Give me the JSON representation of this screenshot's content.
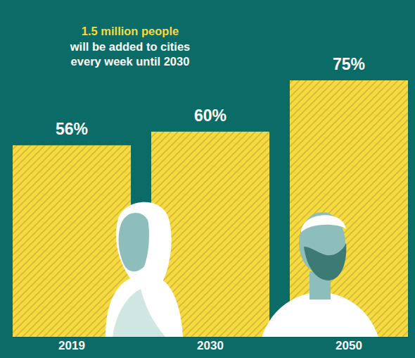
{
  "chart_data": {
    "type": "bar",
    "annotations": [
      "1.5 million people",
      "will be added to cities",
      "every week until 2030"
    ],
    "categories": [
      "2019",
      "2030",
      "2050"
    ],
    "values": [
      56,
      60,
      75
    ],
    "value_labels": [
      "56%",
      "60%",
      "75%"
    ],
    "data_labels": true,
    "color": "#f7da3f",
    "ylim": [
      0,
      75
    ],
    "tick_labels": "x"
  }
}
